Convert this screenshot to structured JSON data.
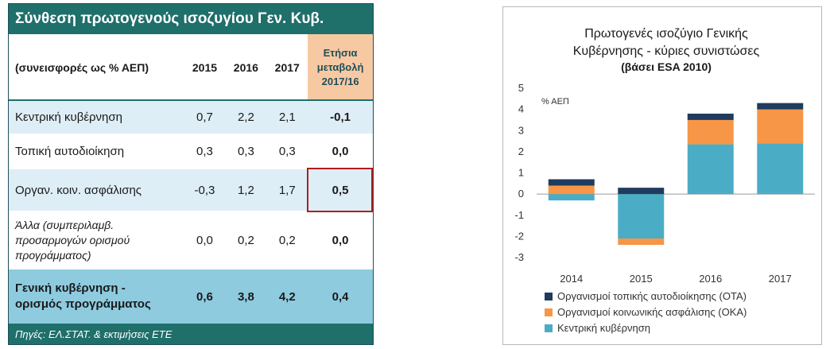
{
  "table": {
    "title": "Σύνθεση πρωτογενούς ισοζυγίου Γεν. Κυβ.",
    "header": {
      "label": "(συνεισφορές ως % ΑΕΠ)",
      "years": [
        "2015",
        "2016",
        "2017"
      ],
      "change_line1": "Ετήσια",
      "change_line2": "μεταβολή",
      "change_line3": "2017/16"
    },
    "rows": [
      {
        "label": "Κεντρική κυβέρνηση",
        "v2015": "0,7",
        "v2016": "2,2",
        "v2017": "2,1",
        "change": "-0,1"
      },
      {
        "label": "Τοπική αυτοδιοίκηση",
        "v2015": "0,3",
        "v2016": "0,3",
        "v2017": "0,3",
        "change": "0,0"
      },
      {
        "label": "Οργαν. κοιν. ασφάλισης",
        "v2015": "-0,3",
        "v2016": "1,2",
        "v2017": "1,7",
        "change": "0,5"
      }
    ],
    "other_row": {
      "label_line1": "Άλλα (συμπεριλαμβ.",
      "label_line2": "προσαρμογών ορισμού",
      "label_line3": "προγράμματος)",
      "v2015": "0,0",
      "v2016": "0,2",
      "v2017": "0,2",
      "change": "0,0"
    },
    "total_row": {
      "label_line1": "Γενική κυβέρνηση -",
      "label_line2": "ορισμός προγράμματος",
      "v2015": "0,6",
      "v2016": "3,8",
      "v2017": "4,2",
      "change": "0,4"
    },
    "source": "Πηγές: ΕΛ.ΣΤΑΤ. & εκτιμήσεις ΕΤΕ"
  },
  "chart_data": {
    "type": "bar",
    "stacked": true,
    "title_line1": "Πρωτογενές ισοζύγιο Γενικής",
    "title_line2": "Κυβέρνησης - κύριες συνιστώσες",
    "subtitle": "(βάσει ESA 2010)",
    "ylabel": "% ΑΕΠ",
    "ylim": [
      -3,
      5
    ],
    "yticks": [
      -3,
      -2,
      -1,
      0,
      1,
      2,
      3,
      4,
      5
    ],
    "categories": [
      "2014",
      "2015",
      "2016",
      "2017"
    ],
    "series": [
      {
        "name": "Κεντρική κυβέρνηση",
        "color": "#4bacc6",
        "values": [
          -0.3,
          -2.1,
          2.35,
          2.4
        ]
      },
      {
        "name": "Οργανισμοί κοινωνικής ασφάλισης (ΟΚΑ)",
        "color": "#f79646",
        "values": [
          0.4,
          -0.3,
          1.15,
          1.6
        ]
      },
      {
        "name": "Οργανισμοί τοπικής αυτοδιοίκησης (ΟΤΑ)",
        "color": "#1f3c5e",
        "values": [
          0.3,
          0.3,
          0.3,
          0.3
        ]
      }
    ],
    "legend_order": [
      2,
      1,
      0
    ],
    "legend_position": "bottom"
  }
}
